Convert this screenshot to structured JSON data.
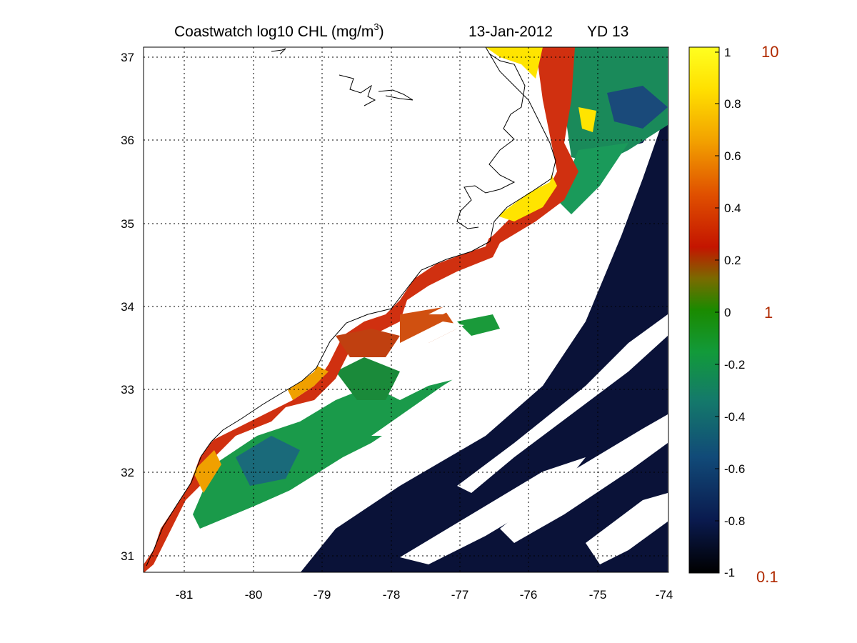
{
  "title": {
    "main": "Coastwatch  log10  CHL (mg/m",
    "sup": "3",
    "close": ")",
    "date": "13-Jan-2012",
    "yd": "YD 13"
  },
  "map": {
    "lon_labels": [
      "-81",
      "-80",
      "-79",
      "-78",
      "-77",
      "-76",
      "-75",
      "-74"
    ],
    "lat_labels": [
      "37",
      "36",
      "35",
      "34",
      "33",
      "32",
      "31"
    ],
    "lon_range": [
      -81.55,
      -73.97
    ],
    "lat_range": [
      30.83,
      37.14
    ],
    "grid": true
  },
  "colorbar": {
    "ticks": [
      "1",
      "0.8",
      "0.6",
      "0.4",
      "0.2",
      "0",
      "-0.2",
      "-0.4",
      "-0.6",
      "-0.8",
      "-1"
    ],
    "range": [
      -1,
      1
    ],
    "linear_labels": [
      "10",
      "1",
      "0.1"
    ],
    "colors": [
      "#000000",
      "#0a1a4e",
      "#114a78",
      "#147a6a",
      "#129a3a",
      "#1a8a00",
      "#7a6a00",
      "#c41500",
      "#e05000",
      "#f2a000",
      "#ffe000",
      "#ffff20"
    ]
  },
  "palette": {
    "high": "#ffe400",
    "orange": "#f0a000",
    "red": "#d03010",
    "green": "#1a9a4a",
    "teal": "#1a7a6a",
    "blue": "#1a4a7a",
    "dark": "#0a1238",
    "coast": "#000000"
  }
}
